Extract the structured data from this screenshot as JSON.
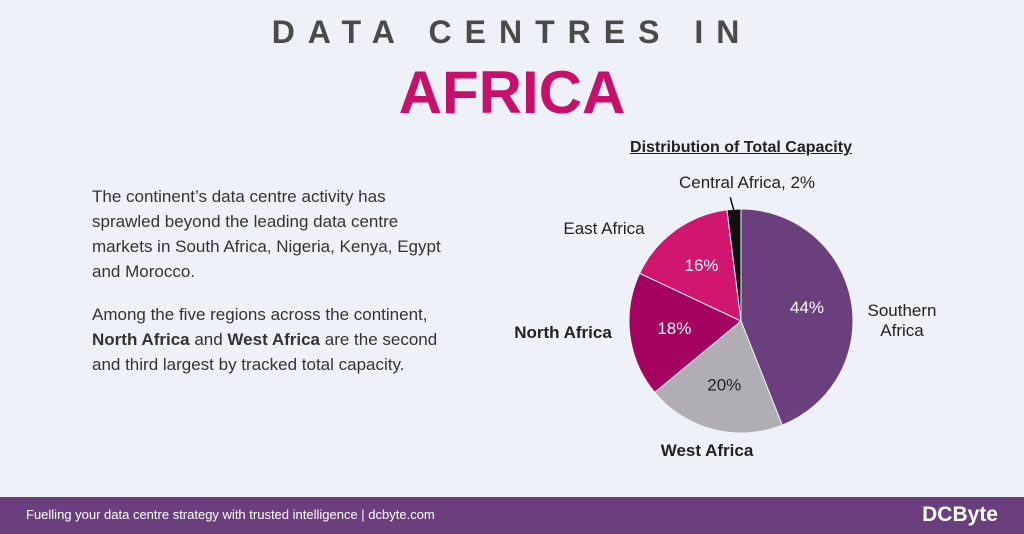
{
  "header": {
    "line1": "DATA CENTRES IN",
    "line2": "AFRICA"
  },
  "text": {
    "paragraph_1": "The continent’s data centre activity has sprawled beyond the leading data centre markets in South Africa, Nigeria, Kenya, Egypt and Morocco.",
    "paragraph_2": [
      "Among the five regions across the continent, ",
      "North Africa",
      " and ",
      "West Africa",
      " are the second and third largest by tracked total capacity."
    ]
  },
  "chart_data": {
    "type": "pie",
    "title": "Distribution of Total Capacity",
    "categories": [
      "Southern Africa",
      "West Africa",
      "North Africa",
      "East Africa",
      "Central Africa, 2%"
    ],
    "values": [
      44,
      20,
      18,
      16,
      2
    ],
    "value_labels": [
      "44%",
      "20%",
      "18%",
      "16%",
      null
    ],
    "colors": [
      "#6b3f7e",
      "#b1aeb3",
      "#a3035f",
      "#d0166f",
      "#111111"
    ],
    "value_label_colors": [
      "#ffffff",
      "#222222",
      "#ffffff",
      "#ffffff",
      null
    ],
    "bold_categories": [
      false,
      true,
      true,
      false,
      false
    ]
  },
  "footer": {
    "tagline": "Fuelling your data centre strategy with trusted intelligence | dcbyte.com",
    "logo": "DCByte"
  }
}
